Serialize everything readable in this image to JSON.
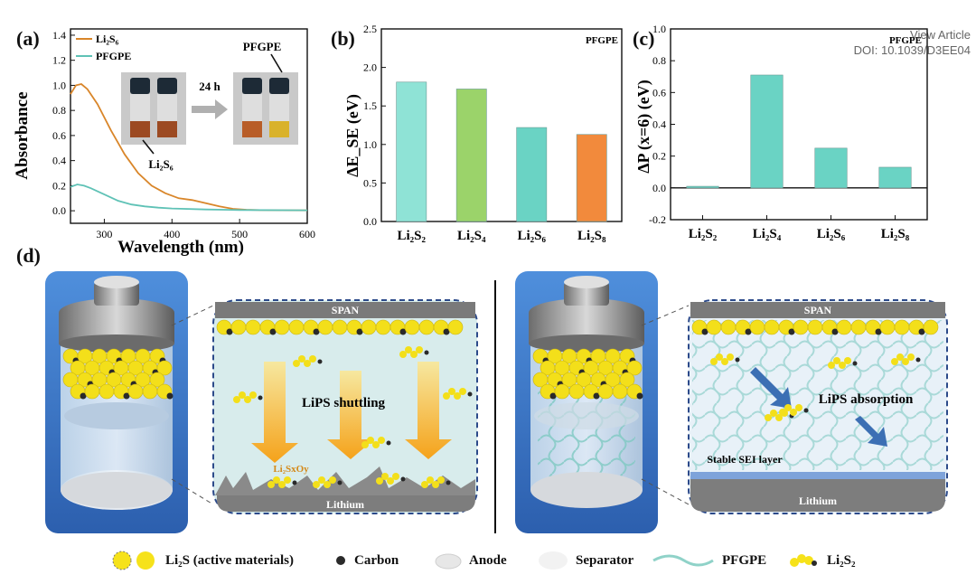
{
  "header": {
    "view_article": "View Article",
    "doi": "DOI: 10.1039/D3EE04"
  },
  "panel_labels": {
    "a": "(a)",
    "b": "(b)",
    "c": "(c)",
    "d": "(d)"
  },
  "chart_data": [
    {
      "id": "a",
      "type": "line",
      "xlabel": "Wavelength (nm)",
      "ylabel": "Absorbance",
      "xlim": [
        250,
        600
      ],
      "ylim": [
        -0.1,
        1.45
      ],
      "xticks": [
        "300",
        "400",
        "500",
        "600"
      ],
      "yticks": [
        "0.0",
        "0.2",
        "0.4",
        "0.6",
        "0.8",
        "1.0",
        "1.2",
        "1.4"
      ],
      "series": [
        {
          "name": "Li₂S₆",
          "color": "#d9862a",
          "x": [
            250,
            258,
            266,
            275,
            290,
            310,
            330,
            350,
            370,
            390,
            410,
            430,
            450,
            470,
            490,
            510,
            530,
            560,
            600
          ],
          "y": [
            0.93,
            1.0,
            1.01,
            0.97,
            0.85,
            0.64,
            0.45,
            0.3,
            0.2,
            0.14,
            0.1,
            0.085,
            0.06,
            0.035,
            0.015,
            0.008,
            0.005,
            0.004,
            0.003
          ]
        },
        {
          "name": "PFGPE",
          "color": "#5fc2b6",
          "x": [
            250,
            260,
            270,
            280,
            300,
            320,
            340,
            360,
            380,
            400,
            450,
            500,
            600
          ],
          "y": [
            0.19,
            0.21,
            0.2,
            0.18,
            0.13,
            0.08,
            0.05,
            0.035,
            0.025,
            0.018,
            0.01,
            0.006,
            0.004
          ]
        }
      ],
      "inset": {
        "time_label": "24 h",
        "pfgpe_label": "PFGPE",
        "li2s6_label": "Li₂S₆"
      }
    },
    {
      "id": "b",
      "type": "bar",
      "title": "PFGPE",
      "ylabel": "ΔE_SE (eV)",
      "ylim": [
        0,
        2.5
      ],
      "yticks": [
        "0.0",
        "0.5",
        "1.0",
        "1.5",
        "2.0",
        "2.5"
      ],
      "categories": [
        "Li₂S₂",
        "Li₂S₄",
        "Li₂S₆",
        "Li₂S₈"
      ],
      "values": [
        1.81,
        1.72,
        1.22,
        1.13
      ],
      "colors": [
        "#8fe3d6",
        "#9bd36a",
        "#6ad3c4",
        "#f28a3c"
      ]
    },
    {
      "id": "c",
      "type": "bar",
      "title": "PFGPE",
      "ylabel": "ΔP (x=6) (eV)",
      "ylim": [
        -0.2,
        1.0
      ],
      "yticks": [
        "-0.2",
        "0.0",
        "0.2",
        "0.4",
        "0.6",
        "0.8",
        "1.0"
      ],
      "categories": [
        "Li₂S₂",
        "Li₂S₄",
        "Li₂S₆",
        "Li₂S₈"
      ],
      "values": [
        0.01,
        0.71,
        0.25,
        0.13
      ],
      "colors": [
        "#6ad3c4",
        "#6ad3c4",
        "#6ad3c4",
        "#6ad3c4"
      ]
    }
  ],
  "diagram": {
    "left": {
      "top_layer": "SPAN",
      "bottom_layer": "Lithium",
      "process": "LiPS shuttling",
      "product": "Li₂SxOy"
    },
    "right": {
      "top_layer": "SPAN",
      "bottom_layer": "Lithium",
      "process": "LiPS absorption",
      "sei": "Stable SEI layer"
    }
  },
  "legend": [
    {
      "icon": "li2s-spheres-icon",
      "label": "Li₂S (active materials)"
    },
    {
      "icon": "carbon-dot-icon",
      "label": "Carbon"
    },
    {
      "icon": "anode-disc-icon",
      "label": "Anode"
    },
    {
      "icon": "separator-disc-icon",
      "label": "Separator"
    },
    {
      "icon": "pfgpe-fiber-icon",
      "label": "PFGPE"
    },
    {
      "icon": "li2s2-cluster-icon",
      "label": "Li₂S₂"
    }
  ]
}
